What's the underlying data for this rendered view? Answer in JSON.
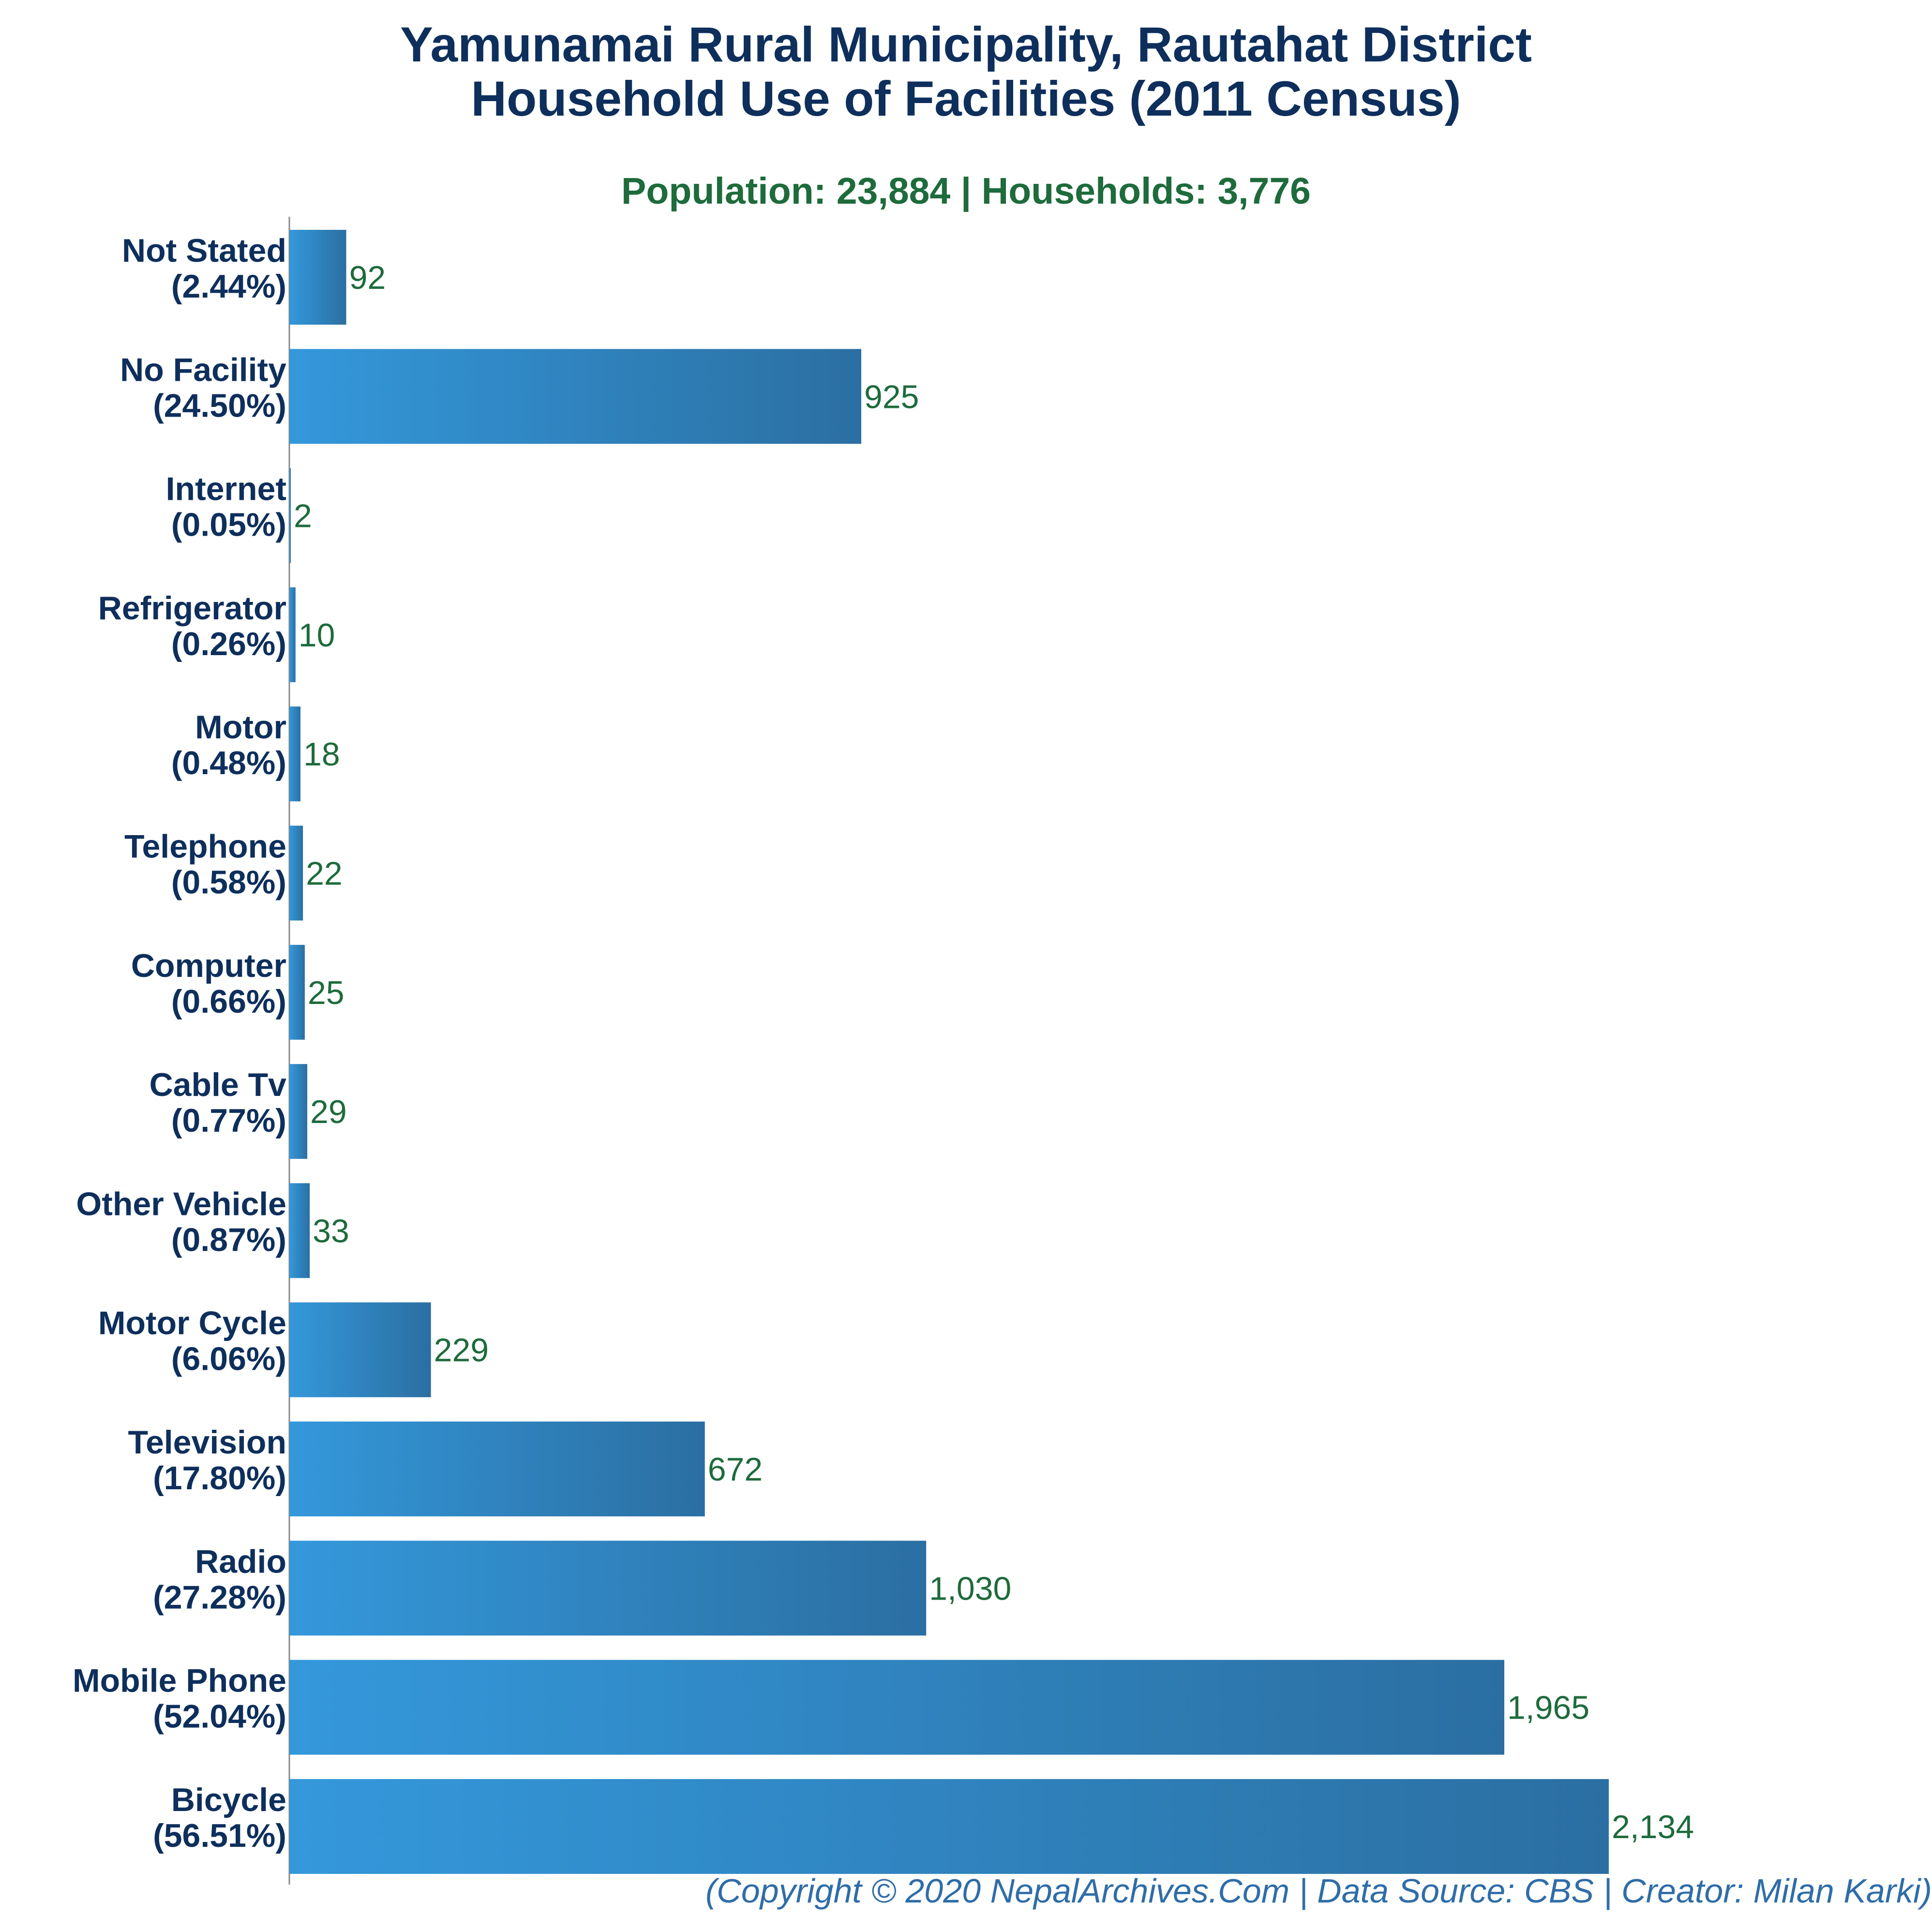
{
  "title_line1": "Yamunamai Rural Municipality, Rautahat District",
  "title_line2": "Household Use of Facilities (2011 Census)",
  "subtitle": "Population: 23,884 | Households: 3,776",
  "footer": "(Copyright © 2020 NepalArchives.Com | Data Source: CBS | Creator: Milan Karki)",
  "colors": {
    "bar_left": "#3498db",
    "bar_right": "#2b6fa2",
    "title": "#0e2f5c",
    "subtitle": "#1e6b3c",
    "value_label": "#1e6b3c",
    "footer": "#2f6da8",
    "axis": "#888888"
  },
  "chart_data": {
    "type": "bar",
    "orientation": "horizontal",
    "categories": [
      "Not Stated",
      "No Facility",
      "Internet",
      "Refrigerator",
      "Motor",
      "Telephone",
      "Computer",
      "Cable Tv",
      "Other Vehicle",
      "Motor Cycle",
      "Television",
      "Radio",
      "Mobile Phone",
      "Bicycle"
    ],
    "percent_labels": [
      "(2.44%)",
      "(24.50%)",
      "(0.05%)",
      "(0.26%)",
      "(0.48%)",
      "(0.58%)",
      "(0.66%)",
      "(0.77%)",
      "(0.87%)",
      "(6.06%)",
      "(17.80%)",
      "(27.28%)",
      "(52.04%)",
      "(56.51%)"
    ],
    "values": [
      92,
      925,
      2,
      10,
      18,
      22,
      25,
      29,
      33,
      229,
      672,
      1030,
      1965,
      2134
    ],
    "value_labels": [
      "92",
      "925",
      "2",
      "10",
      "18",
      "22",
      "25",
      "29",
      "33",
      "229",
      "672",
      "1,030",
      "1,965",
      "2,134"
    ],
    "xlim": [
      0,
      2134
    ],
    "grid": false,
    "legend": "none"
  }
}
